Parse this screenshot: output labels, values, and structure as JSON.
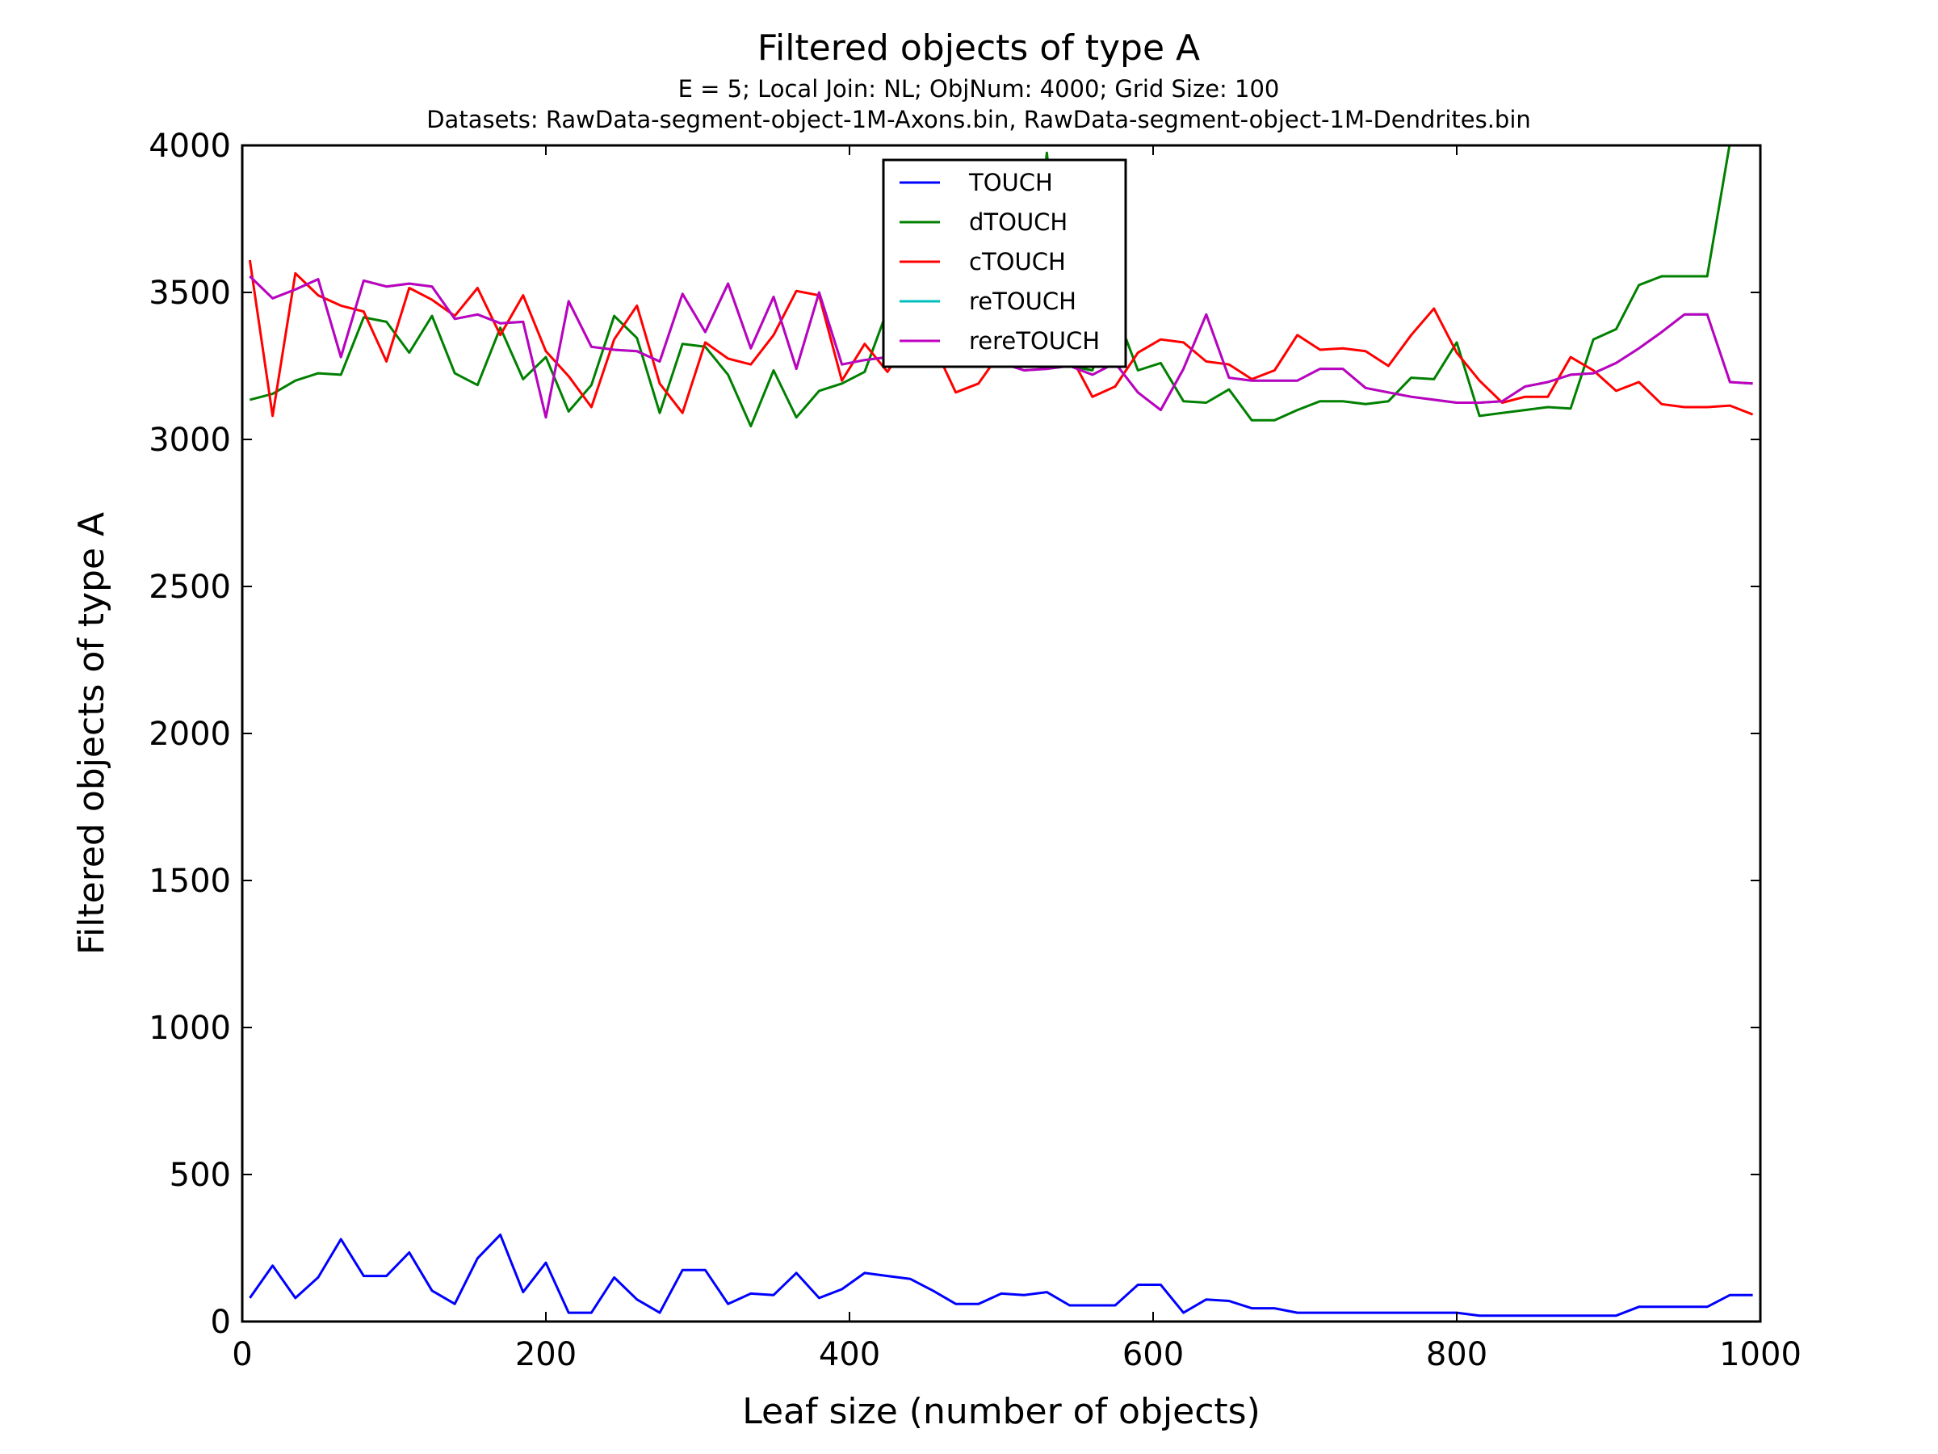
{
  "chart_data": {
    "type": "line",
    "title": "Filtered objects of type A",
    "subtitle_lines": [
      "E = 5; Local Join: NL; ObjNum: 4000; Grid Size: 100",
      "Datasets: RawData-segment-object-1M-Axons.bin, RawData-segment-object-1M-Dendrites.bin"
    ],
    "xlabel": "Leaf size (number of objects)",
    "ylabel": "Filtered objects of type A",
    "xlim": [
      0,
      1000
    ],
    "ylim": [
      0,
      4000
    ],
    "xticks": [
      0,
      200,
      400,
      600,
      800,
      1000
    ],
    "yticks": [
      0,
      500,
      1000,
      1500,
      2000,
      2500,
      3000,
      3500,
      4000
    ],
    "grid": false,
    "legend_position": "upper-center",
    "x": [
      5,
      20,
      35,
      50,
      65,
      80,
      95,
      110,
      125,
      140,
      155,
      170,
      185,
      200,
      215,
      230,
      245,
      260,
      275,
      290,
      305,
      320,
      335,
      350,
      365,
      380,
      395,
      410,
      425,
      440,
      455,
      470,
      485,
      500,
      515,
      530,
      545,
      560,
      575,
      590,
      605,
      620,
      635,
      650,
      665,
      680,
      695,
      710,
      725,
      740,
      755,
      770,
      785,
      800,
      815,
      830,
      845,
      860,
      875,
      890,
      905,
      920,
      935,
      950,
      965,
      980,
      995
    ],
    "series": [
      {
        "name": "TOUCH",
        "color": "#0000ff",
        "values": [
          80,
          190,
          80,
          150,
          280,
          155,
          155,
          235,
          105,
          60,
          215,
          295,
          100,
          200,
          30,
          30,
          150,
          75,
          30,
          175,
          175,
          60,
          95,
          90,
          165,
          80,
          110,
          165,
          155,
          145,
          105,
          60,
          60,
          95,
          90,
          100,
          55,
          55,
          55,
          125,
          125,
          30,
          75,
          70,
          45,
          45,
          30,
          30,
          30,
          30,
          30,
          30,
          30,
          30,
          20,
          20,
          20,
          20,
          20,
          20,
          20,
          50,
          50,
          50,
          50,
          90,
          90
        ]
      },
      {
        "name": "dTOUCH",
        "color": "#008000",
        "values": [
          3135,
          3155,
          3200,
          3225,
          3220,
          3415,
          3400,
          3295,
          3420,
          3225,
          3185,
          3380,
          3205,
          3280,
          3095,
          3185,
          3420,
          3345,
          3090,
          3325,
          3315,
          3220,
          3045,
          3235,
          3075,
          3165,
          3190,
          3230,
          3440,
          3295,
          3265,
          3250,
          3255,
          3270,
          3260,
          3975,
          3250,
          3235,
          3440,
          3235,
          3260,
          3130,
          3125,
          3170,
          3065,
          3065,
          3100,
          3130,
          3130,
          3120,
          3130,
          3210,
          3205,
          3330,
          3080,
          3090,
          3100,
          3110,
          3105,
          3340,
          3375,
          3525,
          3555,
          3555,
          3555,
          4010,
          4010
        ]
      },
      {
        "name": "cTOUCH",
        "color": "#ff0000",
        "values": [
          3610,
          3080,
          3565,
          3490,
          3455,
          3435,
          3265,
          3515,
          3475,
          3420,
          3515,
          3355,
          3490,
          3300,
          3215,
          3110,
          3340,
          3455,
          3190,
          3090,
          3330,
          3275,
          3255,
          3355,
          3505,
          3490,
          3200,
          3325,
          3230,
          3345,
          3325,
          3160,
          3190,
          3300,
          3275,
          3260,
          3290,
          3145,
          3180,
          3295,
          3340,
          3330,
          3265,
          3255,
          3205,
          3235,
          3355,
          3305,
          3310,
          3300,
          3250,
          3355,
          3445,
          3295,
          3200,
          3125,
          3145,
          3145,
          3280,
          3235,
          3165,
          3195,
          3120,
          3110,
          3110,
          3115,
          3085
        ]
      },
      {
        "name": "reTOUCH",
        "color": "#00bfbf",
        "values": [
          3555,
          3480,
          3510,
          3545,
          3280,
          3540,
          3520,
          3530,
          3520,
          3410,
          3425,
          3395,
          3400,
          3075,
          3470,
          3315,
          3305,
          3300,
          3265,
          3495,
          3365,
          3530,
          3310,
          3485,
          3240,
          3500,
          3255,
          3270,
          3280,
          3270,
          3275,
          3265,
          3255,
          3260,
          3235,
          3240,
          3250,
          3220,
          3260,
          3160,
          3100,
          3240,
          3425,
          3210,
          3200,
          3200,
          3200,
          3240,
          3240,
          3175,
          3160,
          3145,
          3135,
          3125,
          3125,
          3130,
          3180,
          3195,
          3220,
          3225,
          3260,
          3310,
          3365,
          3425,
          3425,
          3195,
          3190
        ]
      },
      {
        "name": "rereTOUCH",
        "color": "#bf00bf",
        "values": [
          3555,
          3480,
          3510,
          3545,
          3280,
          3540,
          3520,
          3530,
          3520,
          3410,
          3425,
          3395,
          3400,
          3075,
          3470,
          3315,
          3305,
          3300,
          3265,
          3495,
          3365,
          3530,
          3310,
          3485,
          3240,
          3500,
          3255,
          3270,
          3280,
          3270,
          3275,
          3265,
          3255,
          3260,
          3235,
          3240,
          3250,
          3220,
          3260,
          3160,
          3100,
          3240,
          3425,
          3210,
          3200,
          3200,
          3200,
          3240,
          3240,
          3175,
          3160,
          3145,
          3135,
          3125,
          3125,
          3130,
          3180,
          3195,
          3220,
          3225,
          3260,
          3310,
          3365,
          3425,
          3425,
          3195,
          3190
        ]
      }
    ]
  }
}
